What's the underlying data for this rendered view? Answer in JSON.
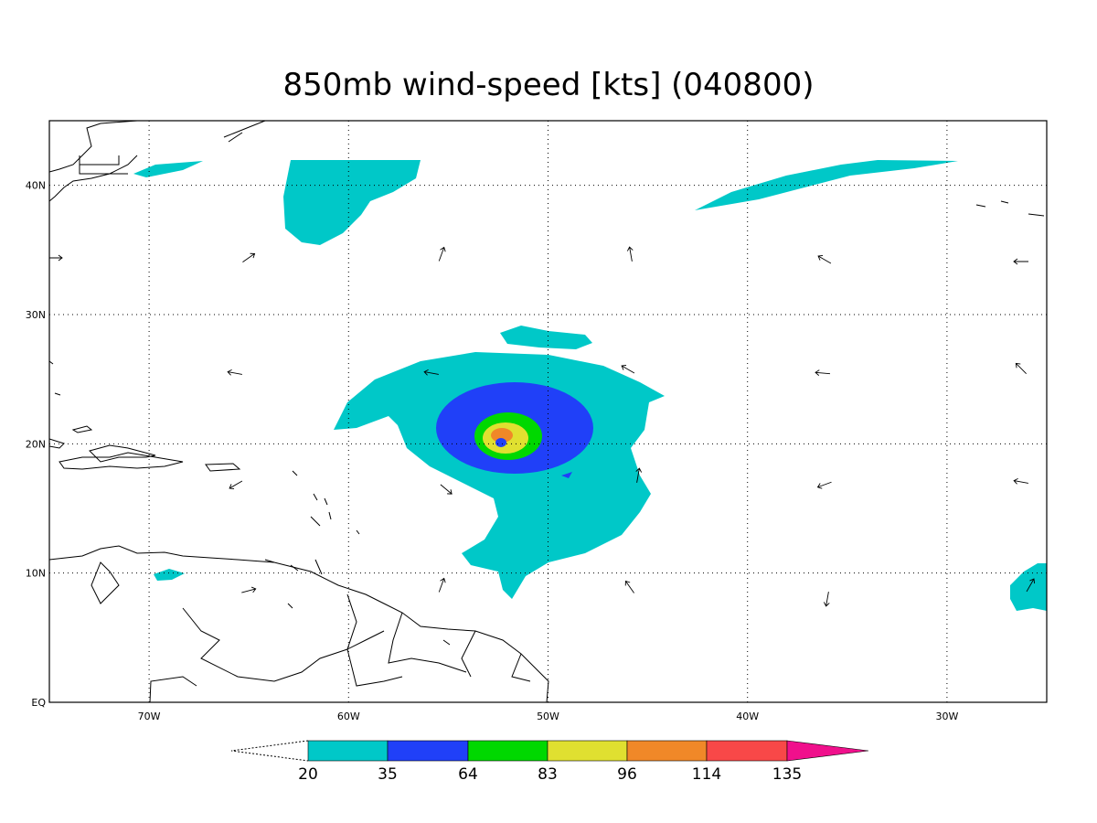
{
  "title": "850mb wind-speed [kts] (040800)",
  "map": {
    "lon_range": [
      -75,
      -25
    ],
    "lat_range": [
      0,
      45
    ],
    "lon_ticks": [
      {
        "value": -70,
        "label": "70W"
      },
      {
        "value": -60,
        "label": "60W"
      },
      {
        "value": -50,
        "label": "50W"
      },
      {
        "value": -40,
        "label": "40W"
      },
      {
        "value": -30,
        "label": "30W"
      }
    ],
    "lat_ticks": [
      {
        "value": 0,
        "label": "EQ"
      },
      {
        "value": 10,
        "label": "10N"
      },
      {
        "value": 20,
        "label": "20N"
      },
      {
        "value": 30,
        "label": "30N"
      },
      {
        "value": 40,
        "label": "40N"
      }
    ],
    "grid": true
  },
  "colorbar": {
    "levels": [
      20,
      35,
      64,
      83,
      96,
      114,
      135
    ],
    "colors": [
      "#00c8c8",
      "#2040f8",
      "#00d800",
      "#e0e030",
      "#f08828",
      "#f84848",
      "#f0108c"
    ]
  }
}
